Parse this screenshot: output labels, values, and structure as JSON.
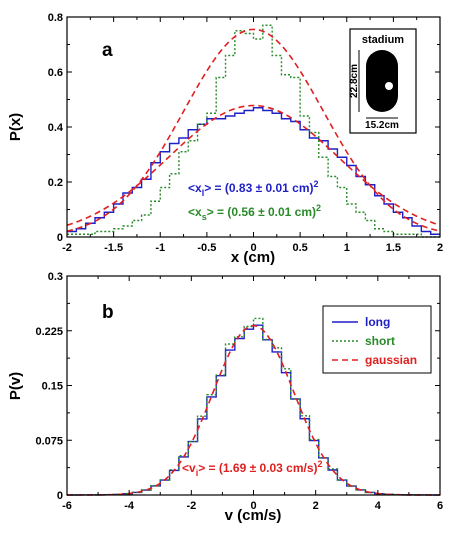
{
  "chart_data": [
    {
      "type": "line",
      "panel_label": "a",
      "xlabel": "x (cm)",
      "ylabel": "P(x)",
      "xlim": [
        -2,
        2
      ],
      "ylim": [
        0,
        0.8
      ],
      "xticks": [
        "-2",
        "-1.5",
        "-1",
        "-0.5",
        "0",
        "0.5",
        "1",
        "1.5",
        "2"
      ],
      "yticks": [
        "0",
        "0.2",
        "0.4",
        "0.6",
        "0.8"
      ],
      "bin_edges": [
        -2.0,
        -1.9,
        -1.8,
        -1.7,
        -1.6,
        -1.5,
        -1.4,
        -1.3,
        -1.2,
        -1.1,
        -1.0,
        -0.9,
        -0.8,
        -0.7,
        -0.6,
        -0.5,
        -0.4,
        -0.3,
        -0.2,
        -0.1,
        0.0,
        0.1,
        0.2,
        0.3,
        0.4,
        0.5,
        0.6,
        0.7,
        0.8,
        0.9,
        1.0,
        1.1,
        1.2,
        1.3,
        1.4,
        1.5,
        1.6,
        1.7,
        1.8,
        1.9,
        2.0
      ],
      "series": [
        {
          "name": "long",
          "style": "step",
          "color": "#1f1fc8",
          "values": [
            0.02,
            0.03,
            0.05,
            0.07,
            0.09,
            0.12,
            0.16,
            0.18,
            0.21,
            0.27,
            0.31,
            0.34,
            0.36,
            0.39,
            0.41,
            0.43,
            0.43,
            0.44,
            0.45,
            0.46,
            0.47,
            0.46,
            0.45,
            0.43,
            0.42,
            0.39,
            0.36,
            0.35,
            0.32,
            0.29,
            0.26,
            0.22,
            0.19,
            0.15,
            0.12,
            0.09,
            0.07,
            0.04,
            0.02,
            0.01
          ]
        },
        {
          "name": "short",
          "style": "step",
          "color": "#2a8a2a",
          "values": [
            0.01,
            0.01,
            0.01,
            0.02,
            0.02,
            0.03,
            0.04,
            0.06,
            0.08,
            0.13,
            0.18,
            0.23,
            0.31,
            0.35,
            0.41,
            0.45,
            0.58,
            0.66,
            0.75,
            0.74,
            0.72,
            0.77,
            0.66,
            0.59,
            0.58,
            0.44,
            0.38,
            0.29,
            0.22,
            0.18,
            0.12,
            0.09,
            0.06,
            0.03,
            0.02,
            0.01,
            0.01,
            0.01,
            0.0,
            0.0
          ]
        }
      ],
      "gaussians": [
        {
          "name": "gaussian fit (long)",
          "color": "#e02020",
          "amplitude": 0.478,
          "mean": 0.0,
          "variance": 0.83
        },
        {
          "name": "gaussian fit (short)",
          "color": "#e02020",
          "amplitude": 0.755,
          "mean": 0.0,
          "variance": 0.56
        }
      ],
      "annotations": [
        {
          "pre": "<x",
          "sub": "l",
          "mid": "> = (0.83 ± 0.01 cm)",
          "post": "2",
          "color": "#1f1fc8"
        },
        {
          "pre": "<x",
          "sub": "s",
          "mid": "> = (0.56 ± 0.01 cm)",
          "post": "2",
          "color": "#2a8a2a"
        }
      ],
      "inset": {
        "title": "stadium",
        "height_label": "22.8cm",
        "width_label": "15.2cm"
      },
      "grid": false
    },
    {
      "type": "line",
      "panel_label": "b",
      "xlabel": "v (cm/s)",
      "ylabel": "P(v)",
      "xlim": [
        -6,
        6
      ],
      "ylim": [
        0,
        0.3
      ],
      "xticks": [
        "-6",
        "-4",
        "-2",
        "0",
        "2",
        "4",
        "6"
      ],
      "yticks": [
        "0",
        "0.075",
        "0.15",
        "0.225",
        "0.3"
      ],
      "bin_width": 0.3,
      "series": [
        {
          "name": "long",
          "style": "step",
          "color": "#1f1fc8",
          "variance": 1.69,
          "amplitude": 0.23
        },
        {
          "name": "short",
          "style": "step",
          "color": "#2a8a2a",
          "variance": 1.69,
          "amplitude": 0.235
        },
        {
          "name": "gaussian",
          "style": "dashed",
          "color": "#e02020",
          "variance": 1.69,
          "amplitude": 0.232
        }
      ],
      "legend": {
        "position": "top-right",
        "entries": [
          "long",
          "short",
          "gaussian"
        ]
      },
      "annotations": [
        {
          "pre": "<v",
          "sub": "i",
          "mid": "> = (1.69 ± 0.03 cm/s)",
          "post": "2",
          "color": "#e02020"
        }
      ],
      "grid": false
    }
  ]
}
